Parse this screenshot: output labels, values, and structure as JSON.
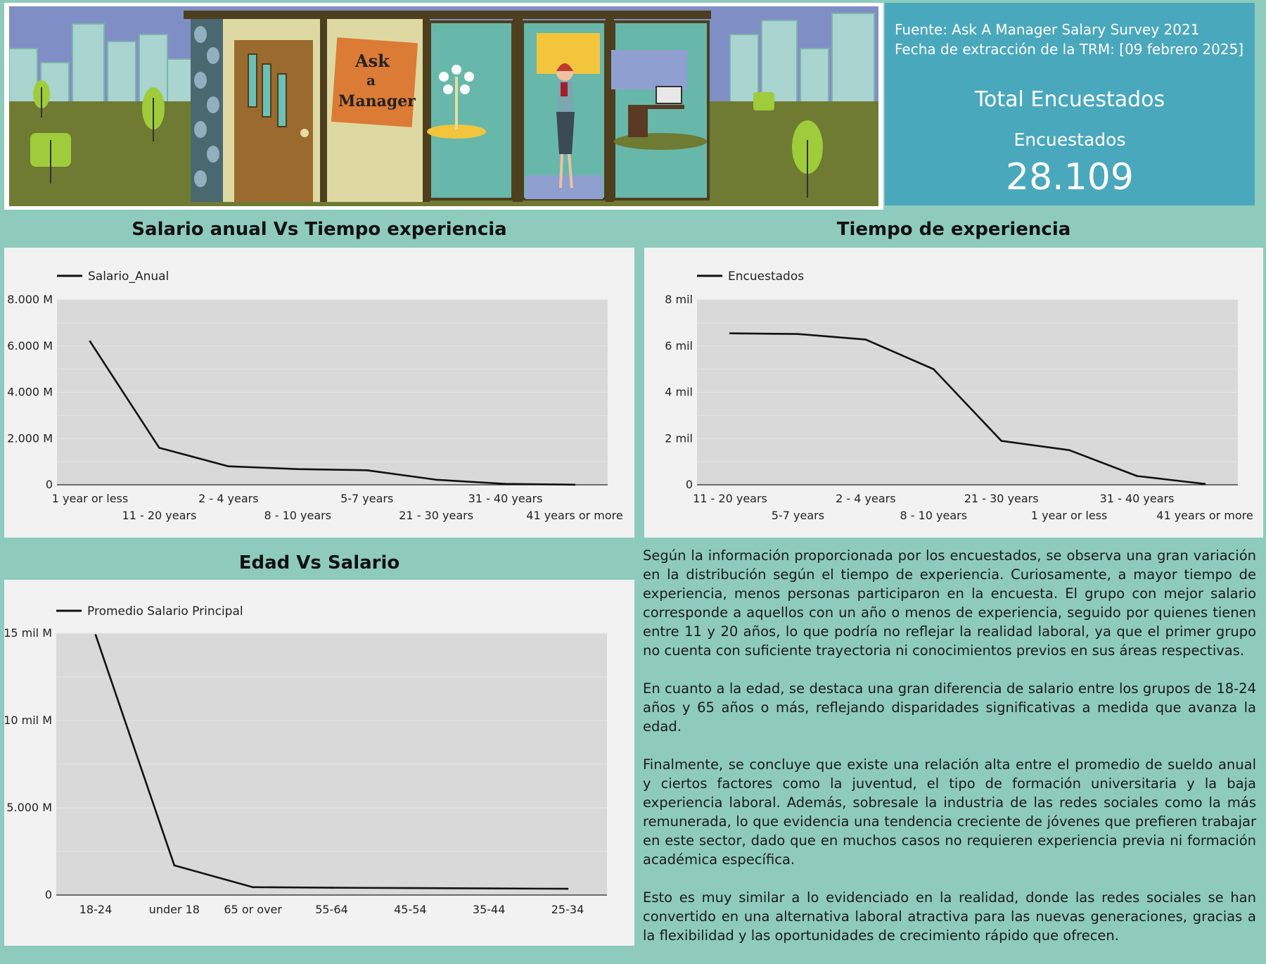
{
  "info": {
    "source_line": "Fuente: Ask A Manager Salary Survey 2021",
    "date_line": "Fecha de extracción de la TRM: [09 febrero 2025]",
    "total_title": "Total Encuestados",
    "respondents_label": "Encuestados",
    "respondents_value": "28.109"
  },
  "banner": {
    "sign_words": [
      "Ask",
      "a",
      "Manager"
    ]
  },
  "headers": {
    "chart1": "Salario anual Vs Tiempo experiencia",
    "chart2": "Tiempo de experiencia",
    "chart3": "Edad Vs Salario"
  },
  "analysis": [
    "Según la información proporcionada por los encuestados, se observa una gran variación en la distribución según el tiempo de experiencia. Curiosamente, a mayor tiempo de experiencia, menos personas participaron en la encuesta. El grupo con mejor salario corresponde a aquellos con un año o menos de experiencia, seguido por quienes tienen entre 11 y 20 años, lo que podría no reflejar la realidad laboral, ya que el primer grupo no cuenta con suficiente trayectoria ni conocimientos previos en sus áreas respectivas.",
    "En cuanto a la edad, se destaca una gran diferencia de salario entre los grupos de 18-24 años y 65 años o más, reflejando disparidades significativas a medida que avanza la edad.",
    "Finalmente, se concluye que existe una relación alta entre el promedio de sueldo anual y ciertos factores como la juventud, el tipo de formación universitaria y la baja experiencia laboral. Además, sobresale la industria de las redes sociales como la más remunerada, lo que evidencia una tendencia creciente de jóvenes que prefieren trabajar en este sector, dado que en muchos casos no requieren experiencia previa ni formación académica específica.",
    "Esto es muy similar a lo evidenciado en la realidad, donde las redes sociales se han convertido en una alternativa laboral atractiva para las nuevas generaciones, gracias a la flexibilidad y las oportunidades de crecimiento rápido que ofrecen."
  ],
  "chart_data": [
    {
      "id": "chart1",
      "type": "line",
      "categories": [
        "1 year or less",
        "11 - 20 years",
        "2 - 4 years",
        "8 - 10 years",
        "5-7 years",
        "21 - 30 years",
        "31 - 40 years",
        "41 years or more"
      ],
      "series": [
        {
          "name": "Salario_Anual",
          "values": [
            6200,
            1600,
            800,
            680,
            630,
            220,
            40,
            5
          ]
        }
      ],
      "yticks": [
        0,
        2000,
        4000,
        6000,
        8000
      ],
      "ytick_labels": [
        "0",
        "2.000 M",
        "4.000 M",
        "6.000 M",
        "8.000 M"
      ],
      "ylim": [
        0,
        8000
      ],
      "grid": true,
      "legend": "top-left"
    },
    {
      "id": "chart2",
      "type": "line",
      "categories": [
        "11 - 20 years",
        "5-7 years",
        "2 - 4 years",
        "8 - 10 years",
        "21 - 30 years",
        "1 year or less",
        "31 - 40 years",
        "41 years or more"
      ],
      "series": [
        {
          "name": "Encuestados",
          "values": [
            6550,
            6520,
            6280,
            5000,
            1900,
            1500,
            380,
            40
          ]
        }
      ],
      "yticks": [
        0,
        2000,
        4000,
        6000,
        8000
      ],
      "ytick_labels": [
        "0",
        "2 mil",
        "4 mil",
        "6 mil",
        "8 mil"
      ],
      "ylim": [
        0,
        8000
      ],
      "grid": true,
      "legend": "top-left"
    },
    {
      "id": "chart3",
      "type": "line",
      "categories": [
        "18-24",
        "under 18",
        "65 or over",
        "55-64",
        "45-54",
        "35-44",
        "25-34"
      ],
      "series": [
        {
          "name": "Promedio Salario Principal",
          "values": [
            14900,
            1700,
            450,
            420,
            400,
            380,
            360
          ]
        }
      ],
      "yticks": [
        0,
        5000,
        10000,
        15000
      ],
      "ytick_labels": [
        "0",
        "5.000 M",
        "10 mil M",
        "15 mil M"
      ],
      "ylim": [
        0,
        15000
      ],
      "grid": true,
      "legend": "top-left"
    }
  ]
}
